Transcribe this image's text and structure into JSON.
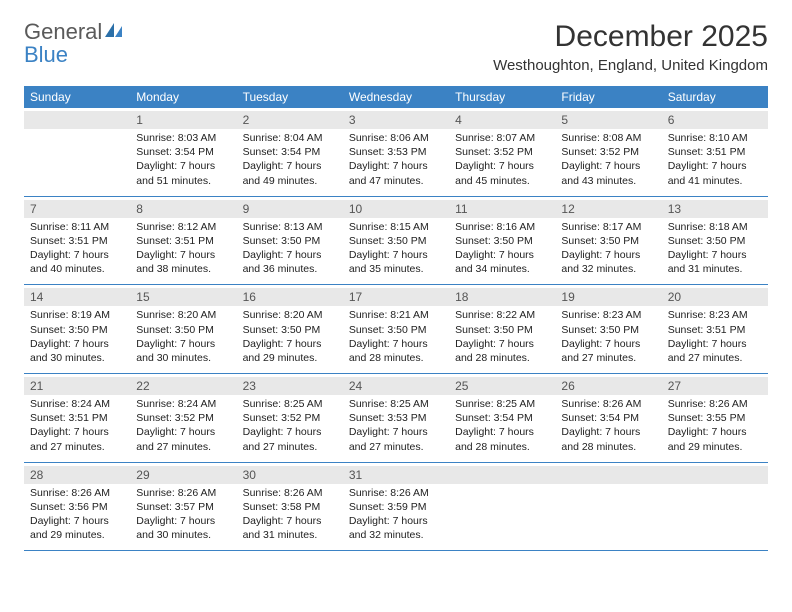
{
  "logo": {
    "line1": "General",
    "line2": "Blue"
  },
  "title": "December 2025",
  "location": "Westhoughton, England, United Kingdom",
  "day_headers": [
    "Sunday",
    "Monday",
    "Tuesday",
    "Wednesday",
    "Thursday",
    "Friday",
    "Saturday"
  ],
  "colors": {
    "accent": "#3b82c4",
    "date_bg": "#e8e8e8"
  },
  "weeks": [
    [
      {
        "num": "",
        "sunrise": "",
        "sunset": "",
        "daylight1": "",
        "daylight2": ""
      },
      {
        "num": "1",
        "sunrise": "Sunrise: 8:03 AM",
        "sunset": "Sunset: 3:54 PM",
        "daylight1": "Daylight: 7 hours",
        "daylight2": "and 51 minutes."
      },
      {
        "num": "2",
        "sunrise": "Sunrise: 8:04 AM",
        "sunset": "Sunset: 3:54 PM",
        "daylight1": "Daylight: 7 hours",
        "daylight2": "and 49 minutes."
      },
      {
        "num": "3",
        "sunrise": "Sunrise: 8:06 AM",
        "sunset": "Sunset: 3:53 PM",
        "daylight1": "Daylight: 7 hours",
        "daylight2": "and 47 minutes."
      },
      {
        "num": "4",
        "sunrise": "Sunrise: 8:07 AM",
        "sunset": "Sunset: 3:52 PM",
        "daylight1": "Daylight: 7 hours",
        "daylight2": "and 45 minutes."
      },
      {
        "num": "5",
        "sunrise": "Sunrise: 8:08 AM",
        "sunset": "Sunset: 3:52 PM",
        "daylight1": "Daylight: 7 hours",
        "daylight2": "and 43 minutes."
      },
      {
        "num": "6",
        "sunrise": "Sunrise: 8:10 AM",
        "sunset": "Sunset: 3:51 PM",
        "daylight1": "Daylight: 7 hours",
        "daylight2": "and 41 minutes."
      }
    ],
    [
      {
        "num": "7",
        "sunrise": "Sunrise: 8:11 AM",
        "sunset": "Sunset: 3:51 PM",
        "daylight1": "Daylight: 7 hours",
        "daylight2": "and 40 minutes."
      },
      {
        "num": "8",
        "sunrise": "Sunrise: 8:12 AM",
        "sunset": "Sunset: 3:51 PM",
        "daylight1": "Daylight: 7 hours",
        "daylight2": "and 38 minutes."
      },
      {
        "num": "9",
        "sunrise": "Sunrise: 8:13 AM",
        "sunset": "Sunset: 3:50 PM",
        "daylight1": "Daylight: 7 hours",
        "daylight2": "and 36 minutes."
      },
      {
        "num": "10",
        "sunrise": "Sunrise: 8:15 AM",
        "sunset": "Sunset: 3:50 PM",
        "daylight1": "Daylight: 7 hours",
        "daylight2": "and 35 minutes."
      },
      {
        "num": "11",
        "sunrise": "Sunrise: 8:16 AM",
        "sunset": "Sunset: 3:50 PM",
        "daylight1": "Daylight: 7 hours",
        "daylight2": "and 34 minutes."
      },
      {
        "num": "12",
        "sunrise": "Sunrise: 8:17 AM",
        "sunset": "Sunset: 3:50 PM",
        "daylight1": "Daylight: 7 hours",
        "daylight2": "and 32 minutes."
      },
      {
        "num": "13",
        "sunrise": "Sunrise: 8:18 AM",
        "sunset": "Sunset: 3:50 PM",
        "daylight1": "Daylight: 7 hours",
        "daylight2": "and 31 minutes."
      }
    ],
    [
      {
        "num": "14",
        "sunrise": "Sunrise: 8:19 AM",
        "sunset": "Sunset: 3:50 PM",
        "daylight1": "Daylight: 7 hours",
        "daylight2": "and 30 minutes."
      },
      {
        "num": "15",
        "sunrise": "Sunrise: 8:20 AM",
        "sunset": "Sunset: 3:50 PM",
        "daylight1": "Daylight: 7 hours",
        "daylight2": "and 30 minutes."
      },
      {
        "num": "16",
        "sunrise": "Sunrise: 8:20 AM",
        "sunset": "Sunset: 3:50 PM",
        "daylight1": "Daylight: 7 hours",
        "daylight2": "and 29 minutes."
      },
      {
        "num": "17",
        "sunrise": "Sunrise: 8:21 AM",
        "sunset": "Sunset: 3:50 PM",
        "daylight1": "Daylight: 7 hours",
        "daylight2": "and 28 minutes."
      },
      {
        "num": "18",
        "sunrise": "Sunrise: 8:22 AM",
        "sunset": "Sunset: 3:50 PM",
        "daylight1": "Daylight: 7 hours",
        "daylight2": "and 28 minutes."
      },
      {
        "num": "19",
        "sunrise": "Sunrise: 8:23 AM",
        "sunset": "Sunset: 3:50 PM",
        "daylight1": "Daylight: 7 hours",
        "daylight2": "and 27 minutes."
      },
      {
        "num": "20",
        "sunrise": "Sunrise: 8:23 AM",
        "sunset": "Sunset: 3:51 PM",
        "daylight1": "Daylight: 7 hours",
        "daylight2": "and 27 minutes."
      }
    ],
    [
      {
        "num": "21",
        "sunrise": "Sunrise: 8:24 AM",
        "sunset": "Sunset: 3:51 PM",
        "daylight1": "Daylight: 7 hours",
        "daylight2": "and 27 minutes."
      },
      {
        "num": "22",
        "sunrise": "Sunrise: 8:24 AM",
        "sunset": "Sunset: 3:52 PM",
        "daylight1": "Daylight: 7 hours",
        "daylight2": "and 27 minutes."
      },
      {
        "num": "23",
        "sunrise": "Sunrise: 8:25 AM",
        "sunset": "Sunset: 3:52 PM",
        "daylight1": "Daylight: 7 hours",
        "daylight2": "and 27 minutes."
      },
      {
        "num": "24",
        "sunrise": "Sunrise: 8:25 AM",
        "sunset": "Sunset: 3:53 PM",
        "daylight1": "Daylight: 7 hours",
        "daylight2": "and 27 minutes."
      },
      {
        "num": "25",
        "sunrise": "Sunrise: 8:25 AM",
        "sunset": "Sunset: 3:54 PM",
        "daylight1": "Daylight: 7 hours",
        "daylight2": "and 28 minutes."
      },
      {
        "num": "26",
        "sunrise": "Sunrise: 8:26 AM",
        "sunset": "Sunset: 3:54 PM",
        "daylight1": "Daylight: 7 hours",
        "daylight2": "and 28 minutes."
      },
      {
        "num": "27",
        "sunrise": "Sunrise: 8:26 AM",
        "sunset": "Sunset: 3:55 PM",
        "daylight1": "Daylight: 7 hours",
        "daylight2": "and 29 minutes."
      }
    ],
    [
      {
        "num": "28",
        "sunrise": "Sunrise: 8:26 AM",
        "sunset": "Sunset: 3:56 PM",
        "daylight1": "Daylight: 7 hours",
        "daylight2": "and 29 minutes."
      },
      {
        "num": "29",
        "sunrise": "Sunrise: 8:26 AM",
        "sunset": "Sunset: 3:57 PM",
        "daylight1": "Daylight: 7 hours",
        "daylight2": "and 30 minutes."
      },
      {
        "num": "30",
        "sunrise": "Sunrise: 8:26 AM",
        "sunset": "Sunset: 3:58 PM",
        "daylight1": "Daylight: 7 hours",
        "daylight2": "and 31 minutes."
      },
      {
        "num": "31",
        "sunrise": "Sunrise: 8:26 AM",
        "sunset": "Sunset: 3:59 PM",
        "daylight1": "Daylight: 7 hours",
        "daylight2": "and 32 minutes."
      },
      {
        "num": "",
        "sunrise": "",
        "sunset": "",
        "daylight1": "",
        "daylight2": ""
      },
      {
        "num": "",
        "sunrise": "",
        "sunset": "",
        "daylight1": "",
        "daylight2": ""
      },
      {
        "num": "",
        "sunrise": "",
        "sunset": "",
        "daylight1": "",
        "daylight2": ""
      }
    ]
  ]
}
